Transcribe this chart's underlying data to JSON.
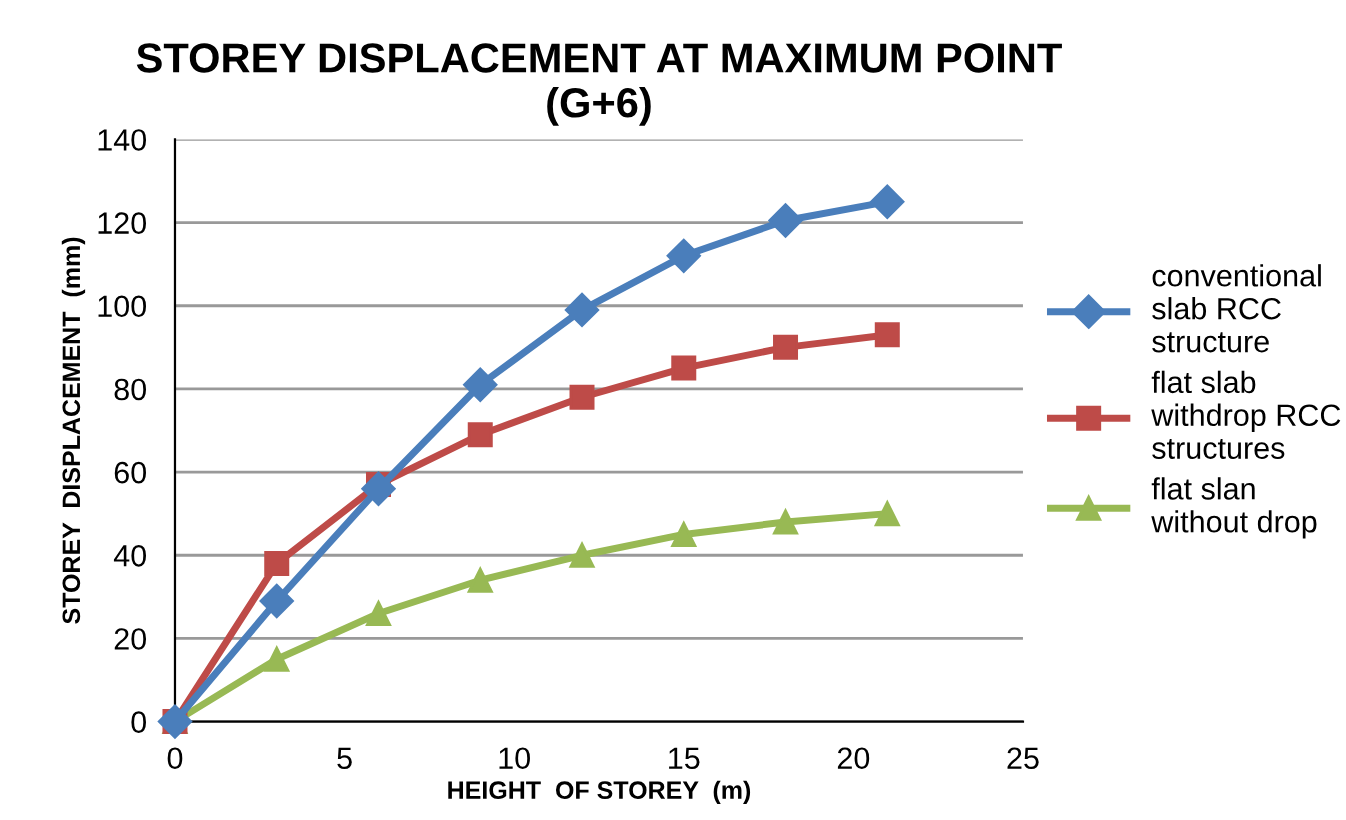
{
  "chart_data": {
    "type": "line",
    "title": "STOREY DISPLACEMENT AT MAXIMUM POINT\n(G+6)",
    "xlabel": "HEIGHT  OF STOREY  (m)",
    "ylabel": "STOREY  DISPLACEMENT  (mm)",
    "x": [
      0,
      3,
      6,
      9,
      12,
      15,
      18,
      21
    ],
    "series": [
      {
        "name": "conventional\nslab RCC\nstructure",
        "color": "#4a7ebb",
        "marker": "diamond",
        "values": [
          0,
          29,
          56,
          81,
          99,
          112,
          120.5,
          125
        ]
      },
      {
        "name": "flat slab\nwithdrop RCC\nstructures",
        "color": "#be4b48",
        "marker": "square",
        "values": [
          0,
          38,
          57,
          69,
          78,
          85,
          90,
          93
        ]
      },
      {
        "name": "flat slan\nwithout drop",
        "color": "#98b954",
        "marker": "triangle",
        "values": [
          0,
          15,
          26,
          34,
          40,
          45,
          48,
          50
        ]
      }
    ],
    "xlim": [
      0,
      25
    ],
    "xticks": [
      0,
      5,
      10,
      15,
      20,
      25
    ],
    "ylim": [
      0,
      140
    ],
    "yticks": [
      0,
      20,
      40,
      60,
      80,
      100,
      120,
      140
    ],
    "grid": "y",
    "legend": "right",
    "line_style": "solid"
  }
}
